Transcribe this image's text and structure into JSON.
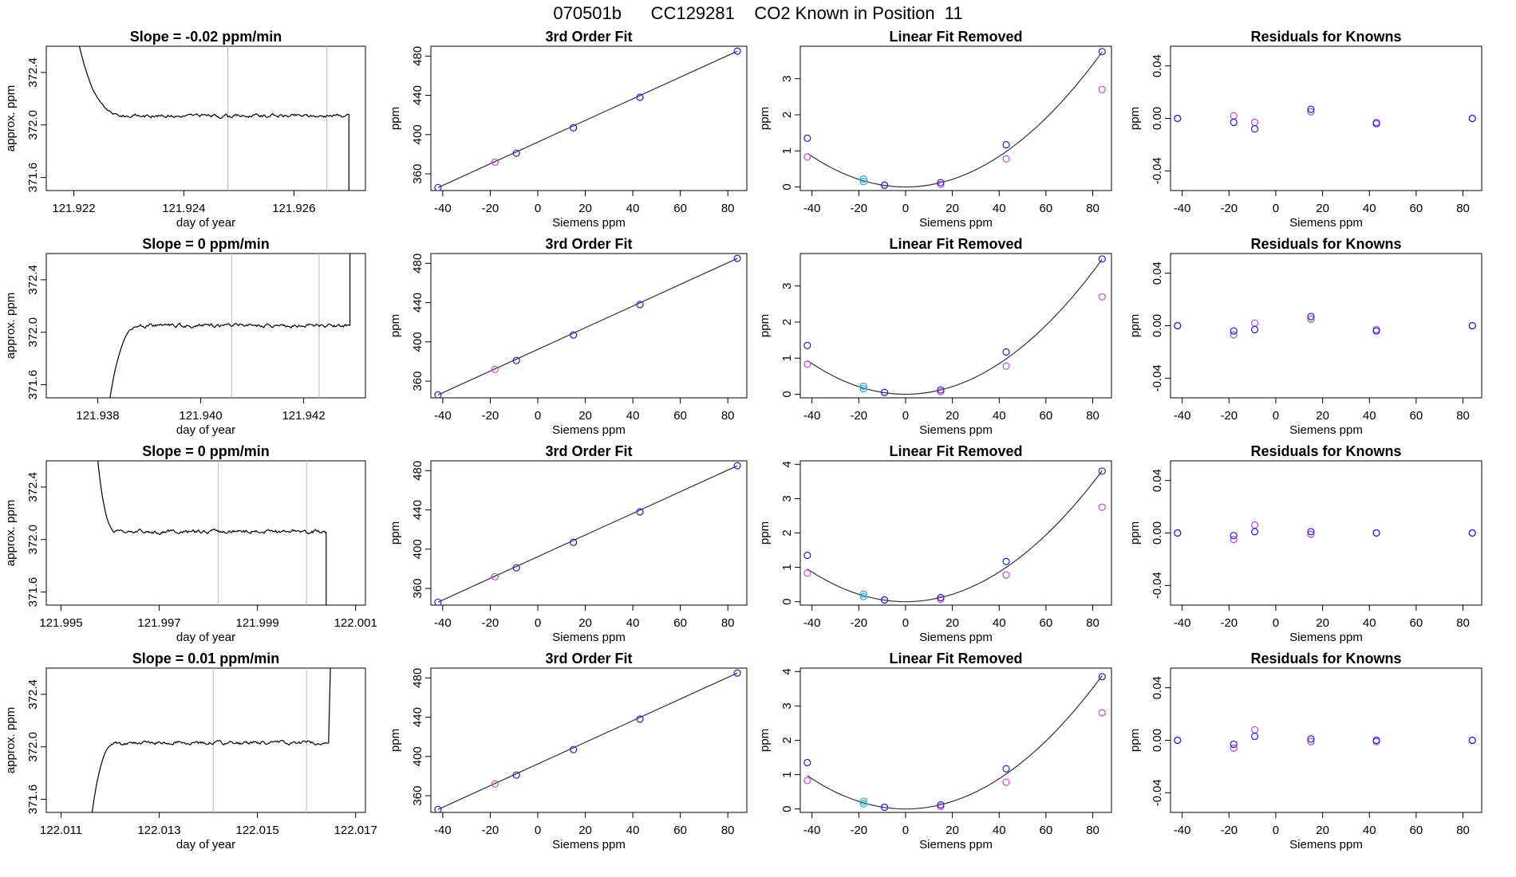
{
  "page": {
    "title": "070501b      CC129281    CO2 Known in Position  11"
  },
  "colors": {
    "trace": "#000000",
    "axis": "#000000",
    "marker_line": "#bbbbbb",
    "fit_points": "#2222cc",
    "raw_points": "#cc44cc",
    "highlight_points": "#22aadd",
    "resid_a": "#2222cc",
    "resid_b": "#bb44ee"
  },
  "chart_data": [
    {
      "type": "line",
      "row": 0,
      "col": 0,
      "title": "Slope =  -0.02  ppm/min",
      "xlabel": "day of year",
      "ylabel": "approx. ppm",
      "xlim": [
        121.9215,
        121.9273
      ],
      "ylim": [
        371.5,
        372.6
      ],
      "xticks": [
        121.922,
        121.924,
        121.926
      ],
      "xtick_labels": [
        "121.922",
        "121.924",
        "121.926"
      ],
      "yticks": [
        371.6,
        372.0,
        372.4
      ],
      "ytick_labels": [
        "371.6",
        "372.0",
        "372.4"
      ],
      "vlines": [
        121.9248,
        121.9266
      ],
      "trace": {
        "x0": 121.922,
        "x1": 121.927,
        "level": 372.07,
        "rise": "down",
        "start": 372.8,
        "settle": 121.923,
        "drop": 121.927,
        "end": 371.4
      }
    },
    {
      "type": "line",
      "row": 0,
      "col": 1,
      "title": "3rd Order Fit",
      "xlabel": "Siemens ppm",
      "ylabel": "ppm",
      "xlim": [
        -45,
        88
      ],
      "ylim": [
        343,
        490
      ],
      "xticks": [
        -40,
        -20,
        0,
        20,
        40,
        60,
        80
      ],
      "yticks": [
        360,
        400,
        440,
        480
      ],
      "fit_x": [
        -42,
        84
      ],
      "fit_y": [
        346,
        485
      ],
      "points_blue": [
        [
          -42,
          346
        ],
        [
          -9,
          381
        ],
        [
          15,
          407
        ],
        [
          43,
          438
        ],
        [
          84,
          485
        ]
      ],
      "points_pink": [
        [
          -18,
          372
        ]
      ]
    },
    {
      "type": "scatter",
      "row": 0,
      "col": 2,
      "title": "Linear Fit Removed",
      "xlabel": "Siemens ppm",
      "ylabel": "ppm",
      "xlim": [
        -45,
        88
      ],
      "ylim": [
        -0.1,
        3.9
      ],
      "xticks": [
        -40,
        -20,
        0,
        20,
        40,
        60,
        80
      ],
      "yticks": [
        0,
        1,
        2,
        3
      ],
      "curve_coef": 0.00053,
      "points_blue": [
        [
          -42,
          1.35
        ],
        [
          -9,
          0.05
        ],
        [
          15,
          0.12
        ],
        [
          43,
          1.17
        ],
        [
          84,
          3.75
        ]
      ],
      "points_pink": [
        [
          -42,
          0.83
        ],
        [
          -9,
          0.05
        ],
        [
          15,
          0.07
        ],
        [
          43,
          0.78
        ],
        [
          84,
          2.7
        ]
      ],
      "points_cyan": [
        [
          -18,
          0.15
        ],
        [
          -18,
          0.22
        ]
      ]
    },
    {
      "type": "scatter",
      "row": 0,
      "col": 3,
      "title": "Residuals for Knowns",
      "xlabel": "Siemens ppm",
      "ylabel": "ppm",
      "xlim": [
        -45,
        88
      ],
      "ylim": [
        -0.055,
        0.055
      ],
      "xticks": [
        -40,
        -20,
        0,
        20,
        40,
        60,
        80
      ],
      "yticks": [
        -0.04,
        0.0,
        0.04
      ],
      "ytick_labels": [
        "-0.04",
        "0.00",
        "0.04"
      ],
      "points_a": [
        [
          -42,
          0.0
        ],
        [
          -18,
          -0.003
        ],
        [
          -9,
          -0.008
        ],
        [
          15,
          0.007
        ],
        [
          43,
          -0.004
        ],
        [
          84,
          0.0
        ]
      ],
      "points_b": [
        [
          -42,
          0.0
        ],
        [
          -18,
          0.002
        ],
        [
          -9,
          -0.003
        ],
        [
          15,
          0.005
        ],
        [
          43,
          -0.003
        ],
        [
          84,
          0.0
        ]
      ]
    },
    {
      "type": "line",
      "row": 1,
      "col": 0,
      "title": "Slope =  0  ppm/min",
      "xlabel": "day of year",
      "ylabel": "approx. ppm",
      "xlim": [
        121.937,
        121.9432
      ],
      "ylim": [
        371.5,
        372.6
      ],
      "xticks": [
        121.938,
        121.94,
        121.942
      ],
      "xtick_labels": [
        "121.938",
        "121.940",
        "121.942"
      ],
      "yticks": [
        371.6,
        372.0,
        372.4
      ],
      "ytick_labels": [
        "371.6",
        "372.0",
        "372.4"
      ],
      "vlines": [
        121.9406,
        121.9423
      ],
      "trace": {
        "x0": 121.9382,
        "x1": 121.9429,
        "level": 372.05,
        "rise": "up",
        "start": 371.4,
        "settle": 121.9389,
        "drop": 121.9429,
        "end": 372.8
      }
    },
    {
      "type": "line",
      "row": 1,
      "col": 1,
      "title": "3rd Order Fit",
      "xlabel": "Siemens ppm",
      "ylabel": "ppm",
      "xlim": [
        -45,
        88
      ],
      "ylim": [
        343,
        490
      ],
      "xticks": [
        -40,
        -20,
        0,
        20,
        40,
        60,
        80
      ],
      "yticks": [
        360,
        400,
        440,
        480
      ],
      "fit_x": [
        -42,
        84
      ],
      "fit_y": [
        346,
        485
      ],
      "points_blue": [
        [
          -42,
          346
        ],
        [
          -9,
          381
        ],
        [
          15,
          407
        ],
        [
          43,
          438
        ],
        [
          84,
          485
        ]
      ],
      "points_pink": [
        [
          -18,
          372
        ]
      ]
    },
    {
      "type": "scatter",
      "row": 1,
      "col": 2,
      "title": "Linear Fit Removed",
      "xlabel": "Siemens ppm",
      "ylabel": "ppm",
      "xlim": [
        -45,
        88
      ],
      "ylim": [
        -0.1,
        3.9
      ],
      "xticks": [
        -40,
        -20,
        0,
        20,
        40,
        60,
        80
      ],
      "yticks": [
        0,
        1,
        2,
        3
      ],
      "curve_coef": 0.00053,
      "points_blue": [
        [
          -42,
          1.35
        ],
        [
          -9,
          0.05
        ],
        [
          15,
          0.12
        ],
        [
          43,
          1.17
        ],
        [
          84,
          3.75
        ]
      ],
      "points_pink": [
        [
          -42,
          0.83
        ],
        [
          -9,
          0.05
        ],
        [
          15,
          0.07
        ],
        [
          43,
          0.78
        ],
        [
          84,
          2.7
        ]
      ],
      "points_cyan": [
        [
          -18,
          0.15
        ],
        [
          -18,
          0.22
        ]
      ]
    },
    {
      "type": "scatter",
      "row": 1,
      "col": 3,
      "title": "Residuals for Knowns",
      "xlabel": "Siemens ppm",
      "ylabel": "ppm",
      "xlim": [
        -45,
        88
      ],
      "ylim": [
        -0.055,
        0.055
      ],
      "xticks": [
        -40,
        -20,
        0,
        20,
        40,
        60,
        80
      ],
      "yticks": [
        -0.04,
        0.0,
        0.04
      ],
      "ytick_labels": [
        "-0.04",
        "0.00",
        "0.04"
      ],
      "points_a": [
        [
          -42,
          0.0
        ],
        [
          -18,
          -0.004
        ],
        [
          -9,
          -0.003
        ],
        [
          15,
          0.007
        ],
        [
          43,
          -0.004
        ],
        [
          84,
          0.0
        ]
      ],
      "points_b": [
        [
          -42,
          0.0
        ],
        [
          -18,
          -0.007
        ],
        [
          -9,
          0.002
        ],
        [
          15,
          0.005
        ],
        [
          43,
          -0.003
        ],
        [
          84,
          0.0
        ]
      ]
    },
    {
      "type": "line",
      "row": 2,
      "col": 0,
      "title": "Slope =  0  ppm/min",
      "xlabel": "day of year",
      "ylabel": "approx. ppm",
      "xlim": [
        121.9947,
        122.0012
      ],
      "ylim": [
        371.5,
        372.6
      ],
      "xticks": [
        121.995,
        121.997,
        121.999,
        122.001
      ],
      "xtick_labels": [
        "121.995",
        "121.997",
        "121.999",
        "122.001"
      ],
      "yticks": [
        371.6,
        372.0,
        372.4
      ],
      "ytick_labels": [
        "371.6",
        "372.0",
        "372.4"
      ],
      "vlines": [
        121.9982,
        122.0
      ],
      "trace": {
        "x0": 121.9957,
        "x1": 122.0004,
        "level": 372.06,
        "rise": "down",
        "start": 372.8,
        "settle": 121.9962,
        "drop": 122.0004,
        "end": 371.4
      }
    },
    {
      "type": "line",
      "row": 2,
      "col": 1,
      "title": "3rd Order Fit",
      "xlabel": "Siemens ppm",
      "ylabel": "ppm",
      "xlim": [
        -45,
        88
      ],
      "ylim": [
        343,
        490
      ],
      "xticks": [
        -40,
        -20,
        0,
        20,
        40,
        60,
        80
      ],
      "yticks": [
        360,
        400,
        440,
        480
      ],
      "fit_x": [
        -42,
        84
      ],
      "fit_y": [
        346,
        485
      ],
      "points_blue": [
        [
          -42,
          346
        ],
        [
          -9,
          381
        ],
        [
          15,
          407
        ],
        [
          43,
          438
        ],
        [
          84,
          485
        ]
      ],
      "points_pink": [
        [
          -18,
          372
        ]
      ]
    },
    {
      "type": "scatter",
      "row": 2,
      "col": 2,
      "title": "Linear Fit Removed",
      "xlabel": "Siemens ppm",
      "ylabel": "ppm",
      "xlim": [
        -45,
        88
      ],
      "ylim": [
        -0.1,
        4.1
      ],
      "xticks": [
        -40,
        -20,
        0,
        20,
        40,
        60,
        80
      ],
      "yticks": [
        0,
        1,
        2,
        3,
        4
      ],
      "curve_coef": 0.00054,
      "points_blue": [
        [
          -42,
          1.35
        ],
        [
          -9,
          0.05
        ],
        [
          15,
          0.12
        ],
        [
          43,
          1.17
        ],
        [
          84,
          3.8
        ]
      ],
      "points_pink": [
        [
          -42,
          0.83
        ],
        [
          -9,
          0.05
        ],
        [
          15,
          0.07
        ],
        [
          43,
          0.78
        ],
        [
          84,
          2.75
        ]
      ],
      "points_cyan": [
        [
          -18,
          0.15
        ],
        [
          -18,
          0.22
        ]
      ]
    },
    {
      "type": "scatter",
      "row": 2,
      "col": 3,
      "title": "Residuals for Knowns",
      "xlabel": "Siemens ppm",
      "ylabel": "ppm",
      "xlim": [
        -45,
        88
      ],
      "ylim": [
        -0.055,
        0.055
      ],
      "xticks": [
        -40,
        -20,
        0,
        20,
        40,
        60,
        80
      ],
      "yticks": [
        -0.04,
        0.0,
        0.04
      ],
      "ytick_labels": [
        "-0.04",
        "0.00",
        "0.04"
      ],
      "points_a": [
        [
          -42,
          0.0
        ],
        [
          -18,
          -0.002
        ],
        [
          -9,
          0.001
        ],
        [
          15,
          0.001
        ],
        [
          43,
          0.0
        ],
        [
          84,
          0.0
        ]
      ],
      "points_b": [
        [
          -42,
          0.0
        ],
        [
          -18,
          -0.005
        ],
        [
          -9,
          0.006
        ],
        [
          15,
          -0.001
        ],
        [
          43,
          0.0
        ],
        [
          84,
          0.0
        ]
      ]
    },
    {
      "type": "line",
      "row": 3,
      "col": 0,
      "title": "Slope =  0.01  ppm/min",
      "xlabel": "day of year",
      "ylabel": "approx. ppm",
      "xlim": [
        122.0107,
        122.0172
      ],
      "ylim": [
        371.5,
        372.6
      ],
      "xticks": [
        122.011,
        122.013,
        122.015,
        122.017
      ],
      "xtick_labels": [
        "122.011",
        "122.013",
        "122.015",
        "122.017"
      ],
      "yticks": [
        371.6,
        372.0,
        372.4
      ],
      "ytick_labels": [
        "371.6",
        "372.0",
        "372.4"
      ],
      "vlines": [
        122.0141,
        122.016
      ],
      "trace": {
        "x0": 122.0116,
        "x1": 122.0165,
        "level": 372.03,
        "rise": "up",
        "start": 371.4,
        "settle": 122.0122,
        "drop": 122.0164,
        "end": 372.8
      }
    },
    {
      "type": "line",
      "row": 3,
      "col": 1,
      "title": "3rd Order Fit",
      "xlabel": "Siemens ppm",
      "ylabel": "ppm",
      "xlim": [
        -45,
        88
      ],
      "ylim": [
        343,
        490
      ],
      "xticks": [
        -40,
        -20,
        0,
        20,
        40,
        60,
        80
      ],
      "yticks": [
        360,
        400,
        440,
        480
      ],
      "fit_x": [
        -42,
        84
      ],
      "fit_y": [
        346,
        485
      ],
      "points_blue": [
        [
          -42,
          346
        ],
        [
          -9,
          381
        ],
        [
          15,
          407
        ],
        [
          43,
          438
        ],
        [
          84,
          485
        ]
      ],
      "points_pink": [
        [
          -18,
          372
        ]
      ]
    },
    {
      "type": "scatter",
      "row": 3,
      "col": 2,
      "title": "Linear Fit Removed",
      "xlabel": "Siemens ppm",
      "ylabel": "ppm",
      "xlim": [
        -45,
        88
      ],
      "ylim": [
        -0.1,
        4.1
      ],
      "xticks": [
        -40,
        -20,
        0,
        20,
        40,
        60,
        80
      ],
      "yticks": [
        0,
        1,
        2,
        3,
        4
      ],
      "curve_coef": 0.00055,
      "points_blue": [
        [
          -42,
          1.35
        ],
        [
          -9,
          0.05
        ],
        [
          15,
          0.12
        ],
        [
          43,
          1.17
        ],
        [
          84,
          3.85
        ]
      ],
      "points_pink": [
        [
          -42,
          0.83
        ],
        [
          -9,
          0.05
        ],
        [
          15,
          0.07
        ],
        [
          43,
          0.78
        ],
        [
          84,
          2.8
        ]
      ],
      "points_cyan": [
        [
          -18,
          0.15
        ],
        [
          -18,
          0.22
        ]
      ]
    },
    {
      "type": "scatter",
      "row": 3,
      "col": 3,
      "title": "Residuals for Knowns",
      "xlabel": "Siemens ppm",
      "ylabel": "ppm",
      "xlim": [
        -45,
        88
      ],
      "ylim": [
        -0.055,
        0.055
      ],
      "xticks": [
        -40,
        -20,
        0,
        20,
        40,
        60,
        80
      ],
      "yticks": [
        -0.04,
        0.0,
        0.04
      ],
      "ytick_labels": [
        "-0.04",
        "0.00",
        "0.04"
      ],
      "points_a": [
        [
          -42,
          0.0
        ],
        [
          -18,
          -0.003
        ],
        [
          -9,
          0.003
        ],
        [
          15,
          0.001
        ],
        [
          43,
          0.0
        ],
        [
          84,
          0.0
        ]
      ],
      "points_b": [
        [
          -42,
          0.0
        ],
        [
          -18,
          -0.006
        ],
        [
          -9,
          0.008
        ],
        [
          15,
          -0.001
        ],
        [
          43,
          -0.001
        ],
        [
          84,
          0.0
        ]
      ]
    }
  ]
}
